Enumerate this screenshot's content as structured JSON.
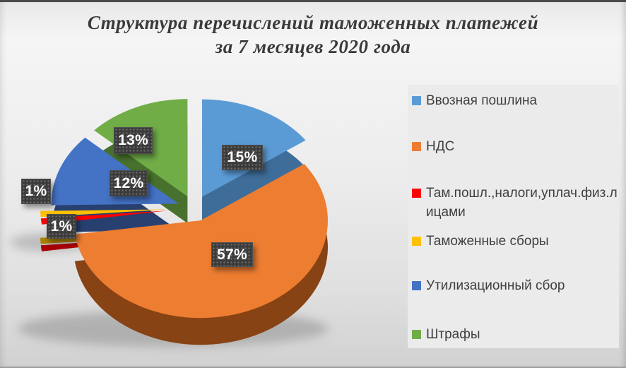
{
  "title": {
    "line1": "Структура перечислений таможенных платежей",
    "line2": "за 7 месяцев 2020 года"
  },
  "chart_data": {
    "type": "pie",
    "style": "3d-exploded-pie",
    "title": "Структура перечислений таможенных платежей за 7 месяцев 2020 года",
    "unit": "%",
    "legend_position": "right",
    "categories": [
      "Ввозная пошлина",
      "НДС",
      "Там.пошл.,налоги,уплач.физ.лицами",
      "Таможенные сборы",
      "Утилизационный сбор",
      "Штрафы"
    ],
    "values": [
      15,
      57,
      1,
      1,
      12,
      13
    ],
    "slices": [
      {
        "label": "Ввозная пошлина",
        "value": 15,
        "display": "15%",
        "color": "#5B9BD5",
        "side_color": "#3E6D99"
      },
      {
        "label": "НДС",
        "value": 57,
        "display": "57%",
        "color": "#ED7D31",
        "side_color": "#874314"
      },
      {
        "label": "Там.пошл.,налоги,уплач.физ.лицами",
        "value": 1,
        "display": "1%",
        "color": "#FE0000",
        "side_color": "#A80000"
      },
      {
        "label": "Таможенные сборы",
        "value": 1,
        "display": "1%",
        "color": "#FFC000",
        "side_color": "#A87E00"
      },
      {
        "label": "Утилизационный сбор",
        "value": 12,
        "display": "12%",
        "color": "#4472C4",
        "side_color": "#27406F"
      },
      {
        "label": "Штрафы",
        "value": 13,
        "display": "13%",
        "color": "#70AD47",
        "side_color": "#48712D"
      }
    ]
  }
}
